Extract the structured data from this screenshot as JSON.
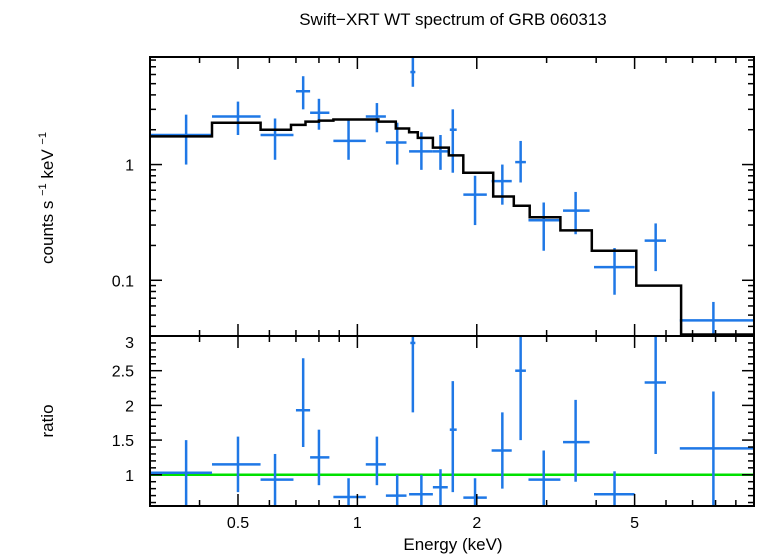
{
  "chart_data": {
    "title": "Swift−XRT WT spectrum of GRB 060313",
    "xlabel": "Energy (keV)",
    "x_scale": "log",
    "xlim": [
      0.3,
      10
    ],
    "x_tick_labels": [
      "0.5",
      "1",
      "2",
      "5"
    ],
    "x_tick_values": [
      0.5,
      1,
      2,
      5
    ],
    "colors": {
      "data": "#1f78e6",
      "model": "#000000",
      "unity": "#00e000"
    },
    "panels": [
      {
        "type": "line",
        "ylabel_main": "counts s",
        "ylabel_sup1": "−1",
        "ylabel_mid": " keV",
        "ylabel_sup2": "−1",
        "y_scale": "log",
        "ylim": [
          0.033,
          8.5
        ],
        "y_tick_labels": [
          "1",
          "0.1"
        ],
        "y_tick_values": [
          1,
          0.1
        ],
        "data_points": [
          {
            "x": 0.37,
            "xlo": 0.3,
            "xhi": 0.43,
            "y": 1.8,
            "ylo": 1.0,
            "yhi": 2.7
          },
          {
            "x": 0.5,
            "xlo": 0.43,
            "xhi": 0.57,
            "y": 2.6,
            "ylo": 1.8,
            "yhi": 3.5
          },
          {
            "x": 0.62,
            "xlo": 0.57,
            "xhi": 0.69,
            "y": 1.8,
            "ylo": 1.1,
            "yhi": 2.5
          },
          {
            "x": 0.73,
            "xlo": 0.7,
            "xhi": 0.76,
            "y": 4.3,
            "ylo": 3.0,
            "yhi": 5.8
          },
          {
            "x": 0.8,
            "xlo": 0.76,
            "xhi": 0.85,
            "y": 2.8,
            "ylo": 2.0,
            "yhi": 3.7
          },
          {
            "x": 0.95,
            "xlo": 0.87,
            "xhi": 1.05,
            "y": 1.6,
            "ylo": 1.1,
            "yhi": 2.4
          },
          {
            "x": 1.12,
            "xlo": 1.05,
            "xhi": 1.18,
            "y": 2.6,
            "ylo": 1.9,
            "yhi": 3.4
          },
          {
            "x": 1.26,
            "xlo": 1.18,
            "xhi": 1.33,
            "y": 1.55,
            "ylo": 1.0,
            "yhi": 2.3
          },
          {
            "x": 1.38,
            "xlo": 1.36,
            "xhi": 1.4,
            "y": 6.3,
            "ylo": 4.7,
            "yhi": 8.5
          },
          {
            "x": 1.45,
            "xlo": 1.35,
            "xhi": 1.55,
            "y": 1.3,
            "ylo": 0.9,
            "yhi": 1.9
          },
          {
            "x": 1.62,
            "xlo": 1.55,
            "xhi": 1.69,
            "y": 1.3,
            "ylo": 0.9,
            "yhi": 1.8
          },
          {
            "x": 1.74,
            "xlo": 1.71,
            "xhi": 1.78,
            "y": 2.0,
            "ylo": 0.85,
            "yhi": 3.0
          },
          {
            "x": 1.98,
            "xlo": 1.85,
            "xhi": 2.12,
            "y": 0.55,
            "ylo": 0.3,
            "yhi": 0.8
          },
          {
            "x": 2.32,
            "xlo": 2.18,
            "xhi": 2.45,
            "y": 0.72,
            "ylo": 0.45,
            "yhi": 1.0
          },
          {
            "x": 2.58,
            "xlo": 2.5,
            "xhi": 2.66,
            "y": 1.05,
            "ylo": 0.7,
            "yhi": 1.6
          },
          {
            "x": 2.95,
            "xlo": 2.7,
            "xhi": 3.25,
            "y": 0.33,
            "ylo": 0.18,
            "yhi": 0.47
          },
          {
            "x": 3.55,
            "xlo": 3.3,
            "xhi": 3.85,
            "y": 0.4,
            "ylo": 0.25,
            "yhi": 0.58
          },
          {
            "x": 4.45,
            "xlo": 3.95,
            "xhi": 5.0,
            "y": 0.13,
            "ylo": 0.075,
            "yhi": 0.19
          },
          {
            "x": 5.65,
            "xlo": 5.3,
            "xhi": 6.0,
            "y": 0.22,
            "ylo": 0.12,
            "yhi": 0.31
          },
          {
            "x": 7.9,
            "xlo": 6.5,
            "xhi": 10.0,
            "y": 0.045,
            "ylo": 0.033,
            "yhi": 0.065
          }
        ],
        "model_steps": [
          {
            "x0": 0.3,
            "x1": 0.43,
            "y": 1.75
          },
          {
            "x0": 0.43,
            "x1": 0.57,
            "y": 2.3
          },
          {
            "x0": 0.57,
            "x1": 0.68,
            "y": 2.0
          },
          {
            "x0": 0.68,
            "x1": 0.74,
            "y": 2.2
          },
          {
            "x0": 0.74,
            "x1": 0.8,
            "y": 2.35
          },
          {
            "x0": 0.8,
            "x1": 0.87,
            "y": 2.4
          },
          {
            "x0": 0.87,
            "x1": 1.13,
            "y": 2.45
          },
          {
            "x0": 1.13,
            "x1": 1.25,
            "y": 2.35
          },
          {
            "x0": 1.25,
            "x1": 1.35,
            "y": 2.05
          },
          {
            "x0": 1.35,
            "x1": 1.42,
            "y": 1.9
          },
          {
            "x0": 1.42,
            "x1": 1.55,
            "y": 1.7
          },
          {
            "x0": 1.55,
            "x1": 1.7,
            "y": 1.4
          },
          {
            "x0": 1.7,
            "x1": 1.85,
            "y": 1.2
          },
          {
            "x0": 1.85,
            "x1": 2.2,
            "y": 0.85
          },
          {
            "x0": 2.2,
            "x1": 2.48,
            "y": 0.53
          },
          {
            "x0": 2.48,
            "x1": 2.72,
            "y": 0.44
          },
          {
            "x0": 2.72,
            "x1": 3.25,
            "y": 0.35
          },
          {
            "x0": 3.25,
            "x1": 3.9,
            "y": 0.27
          },
          {
            "x0": 3.9,
            "x1": 5.05,
            "y": 0.18
          },
          {
            "x0": 5.05,
            "x1": 6.55,
            "y": 0.09
          },
          {
            "x0": 6.55,
            "x1": 10.0,
            "y": 0.034
          }
        ]
      },
      {
        "type": "scatter",
        "ylabel": "ratio",
        "y_scale": "linear",
        "ylim": [
          0.55,
          3.0
        ],
        "y_tick_labels": [
          "3",
          "2.5",
          "2",
          "1.5",
          "1"
        ],
        "y_tick_values": [
          3,
          2.5,
          2,
          1.5,
          1
        ],
        "unity_line": 1,
        "data_points": [
          {
            "x": 0.37,
            "xlo": 0.3,
            "xhi": 0.43,
            "y": 1.03,
            "ylo": 0.55,
            "yhi": 1.5
          },
          {
            "x": 0.5,
            "xlo": 0.43,
            "xhi": 0.57,
            "y": 1.15,
            "ylo": 0.75,
            "yhi": 1.55
          },
          {
            "x": 0.62,
            "xlo": 0.57,
            "xhi": 0.69,
            "y": 0.93,
            "ylo": 0.55,
            "yhi": 1.3
          },
          {
            "x": 0.73,
            "xlo": 0.7,
            "xhi": 0.76,
            "y": 1.93,
            "ylo": 1.4,
            "yhi": 2.68
          },
          {
            "x": 0.8,
            "xlo": 0.76,
            "xhi": 0.85,
            "y": 1.25,
            "ylo": 0.85,
            "yhi": 1.65
          },
          {
            "x": 0.95,
            "xlo": 0.87,
            "xhi": 1.05,
            "y": 0.68,
            "ylo": 0.55,
            "yhi": 0.95
          },
          {
            "x": 1.12,
            "xlo": 1.05,
            "xhi": 1.18,
            "y": 1.15,
            "ylo": 0.85,
            "yhi": 1.55
          },
          {
            "x": 1.26,
            "xlo": 1.18,
            "xhi": 1.33,
            "y": 0.7,
            "ylo": 0.55,
            "yhi": 1.0
          },
          {
            "x": 1.38,
            "xlo": 1.36,
            "xhi": 1.4,
            "y": 2.9,
            "ylo": 1.9,
            "yhi": 3.0
          },
          {
            "x": 1.45,
            "xlo": 1.35,
            "xhi": 1.55,
            "y": 0.72,
            "ylo": 0.55,
            "yhi": 1.0
          },
          {
            "x": 1.62,
            "xlo": 1.55,
            "xhi": 1.69,
            "y": 0.82,
            "ylo": 0.55,
            "yhi": 1.08
          },
          {
            "x": 1.74,
            "xlo": 1.71,
            "xhi": 1.78,
            "y": 1.65,
            "ylo": 0.75,
            "yhi": 2.35
          },
          {
            "x": 1.98,
            "xlo": 1.85,
            "xhi": 2.12,
            "y": 0.67,
            "ylo": 0.55,
            "yhi": 0.95
          },
          {
            "x": 2.32,
            "xlo": 2.18,
            "xhi": 2.45,
            "y": 1.35,
            "ylo": 0.8,
            "yhi": 1.9
          },
          {
            "x": 2.58,
            "xlo": 2.5,
            "xhi": 2.66,
            "y": 2.5,
            "ylo": 1.5,
            "yhi": 3.0
          },
          {
            "x": 2.95,
            "xlo": 2.7,
            "xhi": 3.25,
            "y": 0.93,
            "ylo": 0.55,
            "yhi": 1.35
          },
          {
            "x": 3.55,
            "xlo": 3.3,
            "xhi": 3.85,
            "y": 1.47,
            "ylo": 0.9,
            "yhi": 2.08
          },
          {
            "x": 4.45,
            "xlo": 3.95,
            "xhi": 5.0,
            "y": 0.72,
            "ylo": 0.55,
            "yhi": 1.05
          },
          {
            "x": 5.65,
            "xlo": 5.3,
            "xhi": 6.0,
            "y": 2.33,
            "ylo": 1.3,
            "yhi": 3.0
          },
          {
            "x": 7.9,
            "xlo": 6.5,
            "xhi": 10.0,
            "y": 1.38,
            "ylo": 0.55,
            "yhi": 2.2
          }
        ]
      }
    ]
  }
}
